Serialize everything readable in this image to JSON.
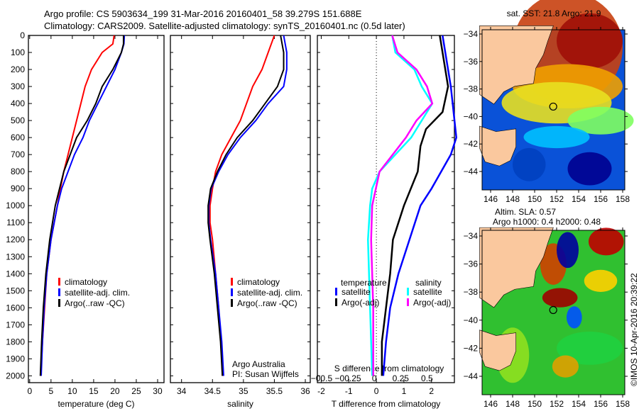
{
  "title_line1": "Argo profile: CS 5903634_199 31-Mar-2016 20160401_58 39.279S 151.688E",
  "title_line2": "Climatology: CARS2009. Satellite-adjusted climatology: synTS_20160401.nc (0.5d later)",
  "credit": {
    "line1": "Argo Australia",
    "line2": "PI: Susan Wijffels"
  },
  "copyright": "©IMOS 10-Apr-2016 20:39:22",
  "chart_data": [
    {
      "type": "line",
      "id": "temperature",
      "xlabel": "temperature (deg C)",
      "ylabel": "",
      "xlim": [
        -0.3,
        31.5
      ],
      "ylim": [
        2040,
        0
      ],
      "xticks": [
        0,
        5,
        10,
        15,
        20,
        25,
        30
      ],
      "yticks": [
        0,
        100,
        200,
        300,
        400,
        500,
        600,
        700,
        800,
        900,
        1000,
        1100,
        1200,
        1300,
        1400,
        1500,
        1600,
        1700,
        1800,
        1900,
        2000
      ],
      "legend": [
        "climatology",
        "satellite-adj. clim.",
        "Argo(..raw -QC)"
      ],
      "series": [
        {
          "name": "climatology",
          "color": "#ff0000",
          "depth": [
            0,
            50,
            100,
            200,
            300,
            400,
            500,
            600,
            700,
            800,
            900,
            1000,
            1200,
            1400,
            1600,
            1800,
            2000
          ],
          "values": [
            19.8,
            19.5,
            17,
            14.5,
            13,
            12,
            11,
            10,
            9,
            8,
            7.2,
            6.5,
            5,
            4,
            3.5,
            3,
            2.6
          ]
        },
        {
          "name": "satellite-adj. clim.",
          "color": "#0000ff",
          "depth": [
            0,
            50,
            100,
            200,
            300,
            400,
            500,
            600,
            700,
            800,
            900,
            1000,
            1200,
            1400,
            1600,
            1800,
            2000
          ],
          "values": [
            22.2,
            22.1,
            21.5,
            20,
            18,
            16,
            14,
            12.5,
            10.5,
            9,
            7.5,
            6.5,
            5,
            4,
            3.4,
            3,
            2.7
          ]
        },
        {
          "name": "Argo(..raw -QC)",
          "color": "#000000",
          "depth": [
            0,
            50,
            100,
            200,
            300,
            400,
            500,
            600,
            700,
            800,
            900,
            1000,
            1200,
            1400,
            1600,
            1800,
            2000
          ],
          "values": [
            22,
            22,
            21.5,
            19.5,
            17,
            15.5,
            13.5,
            11,
            9.5,
            8,
            7,
            6,
            4.7,
            3.8,
            3.2,
            2.8,
            2.5
          ]
        }
      ]
    },
    {
      "type": "line",
      "id": "salinity",
      "xlabel": "salinity",
      "xlim": [
        33.82,
        36.08
      ],
      "ylim": [
        2040,
        0
      ],
      "xticks": [
        34,
        34.5,
        35,
        35.5,
        36
      ],
      "legend": [
        "climatology",
        "satellite-adj. clim.",
        "Argo(..raw -QC)"
      ],
      "series": [
        {
          "name": "climatology",
          "color": "#ff0000",
          "depth": [
            0,
            100,
            200,
            300,
            400,
            500,
            600,
            700,
            800,
            900,
            1000,
            1100,
            1200,
            1400,
            1600,
            1800,
            2000
          ],
          "values": [
            35.5,
            35.4,
            35.3,
            35.15,
            35.05,
            34.95,
            34.8,
            34.65,
            34.55,
            34.5,
            34.46,
            34.46,
            34.5,
            34.55,
            34.6,
            34.64,
            34.66
          ]
        },
        {
          "name": "satellite-adj. clim.",
          "color": "#0000ff",
          "depth": [
            0,
            100,
            200,
            300,
            400,
            500,
            600,
            700,
            800,
            900,
            1000,
            1100,
            1200,
            1400,
            1600,
            1800,
            2000
          ],
          "values": [
            35.65,
            35.7,
            35.7,
            35.65,
            35.4,
            35.2,
            34.95,
            34.75,
            34.6,
            34.48,
            34.44,
            34.44,
            34.47,
            34.55,
            34.6,
            34.65,
            34.68
          ]
        },
        {
          "name": "Argo(..raw -QC)",
          "color": "#000000",
          "depth": [
            0,
            100,
            200,
            300,
            400,
            500,
            600,
            700,
            800,
            900,
            1000,
            1100,
            1200,
            1400,
            1600,
            1800,
            2000
          ],
          "values": [
            35.6,
            35.65,
            35.65,
            35.55,
            35.35,
            35.15,
            34.9,
            34.72,
            34.58,
            34.47,
            34.43,
            34.43,
            34.46,
            34.53,
            34.58,
            34.63,
            34.66
          ]
        }
      ]
    },
    {
      "type": "line",
      "id": "difference",
      "xlabel": "T difference from climatology",
      "x2label": "S difference from climatology",
      "xlim": [
        -2.14,
        2.83
      ],
      "x2lim": [
        -0.54,
        0.76
      ],
      "ylim": [
        2040,
        0
      ],
      "xticks": [
        -2,
        -1,
        0,
        1,
        2
      ],
      "x2ticks": [
        -0.5,
        -0.25,
        0,
        0.25,
        0.5
      ],
      "legend_t": {
        "title": "temperature",
        "items": [
          "satellite",
          "Argo(-adj)"
        ]
      },
      "legend_s": {
        "title": "salinity",
        "items": [
          "satellite",
          "Argo(-adj)"
        ]
      },
      "series": [
        {
          "name": "T satellite",
          "axis": "T",
          "color": "#0000ff",
          "depth": [
            0,
            300,
            600,
            700,
            900,
            1000,
            1200,
            1400,
            1600,
            1800,
            2000
          ],
          "values": [
            2.4,
            2.7,
            2.9,
            2.7,
            2.0,
            1.6,
            1.2,
            0.8,
            0.5,
            0.35,
            0.25
          ]
        },
        {
          "name": "T Argo(-adj)",
          "axis": "T",
          "color": "#000000",
          "depth": [
            0,
            300,
            450,
            550,
            650,
            800,
            1000,
            1200,
            1400,
            1600,
            1800,
            2000
          ],
          "values": [
            2.3,
            2.6,
            2.4,
            1.8,
            1.6,
            1.5,
            1.0,
            0.6,
            0.5,
            0.35,
            0.2,
            0.2
          ]
        },
        {
          "name": "S satellite",
          "axis": "S",
          "color": "#00ffff",
          "depth": [
            0,
            100,
            200,
            300,
            400,
            500,
            600,
            800,
            900,
            1000,
            1200,
            1400,
            1600,
            1800,
            2000
          ],
          "values": [
            0.17,
            0.2,
            0.38,
            0.45,
            0.55,
            0.45,
            0.35,
            0.05,
            -0.02,
            -0.04,
            -0.06,
            -0.05,
            -0.04,
            -0.03,
            -0.02
          ]
        },
        {
          "name": "S Argo(-adj)",
          "axis": "S",
          "color": "#ff00ff",
          "depth": [
            0,
            100,
            200,
            300,
            400,
            500,
            600,
            800,
            1000,
            1200,
            1400,
            1600,
            1800,
            2000
          ],
          "values": [
            0.17,
            0.22,
            0.4,
            0.5,
            0.55,
            0.4,
            0.3,
            0.05,
            -0.02,
            -0.03,
            -0.02,
            -0.01,
            -0.01,
            -0.01
          ]
        }
      ]
    },
    {
      "type": "heatmap",
      "id": "sst-map",
      "title": "sat. SST: 21.8 Argo: 21.9",
      "xticks": [
        146,
        148,
        150,
        152,
        154,
        156,
        158
      ],
      "yticks": [
        -34,
        -36,
        -38,
        -40,
        -42,
        -44
      ],
      "argo_position": [
        151.688,
        -39.279
      ]
    },
    {
      "type": "heatmap",
      "id": "sla-map",
      "title_line1": "Altim. SLA: 0.57",
      "title_line2": "Argo h1000: 0.4 h2000: 0.48",
      "xticks": [
        146,
        148,
        150,
        152,
        154,
        156,
        158
      ],
      "yticks": [
        -34,
        -36,
        -38,
        -40,
        -42,
        -44
      ],
      "argo_position": [
        151.688,
        -39.279
      ]
    }
  ]
}
